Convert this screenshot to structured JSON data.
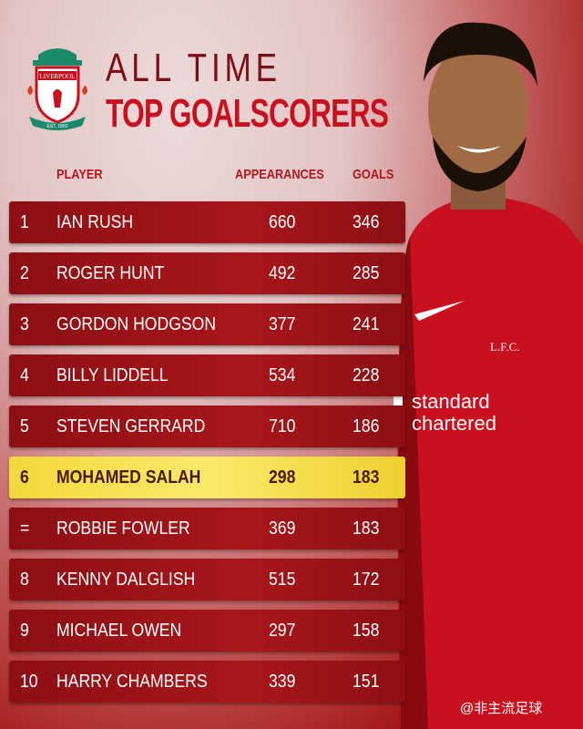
{
  "title": {
    "line1": "ALL TIME",
    "line2": "TOP GOALSCORERS"
  },
  "crest": {
    "motto": "YOU'LL NEVER WALK ALONE",
    "club": "LIVERPOOL",
    "sub": "FOOTBALL CLUB",
    "est": "EST. 1892"
  },
  "headers": {
    "player": "PLAYER",
    "appearances": "APPEARANCES",
    "goals": "GOALS"
  },
  "rows": [
    {
      "rank": "1",
      "name": "IAN RUSH",
      "apps": "660",
      "goals": "346"
    },
    {
      "rank": "2",
      "name": "ROGER HUNT",
      "apps": "492",
      "goals": "285"
    },
    {
      "rank": "3",
      "name": "GORDON HODGSON",
      "apps": "377",
      "goals": "241"
    },
    {
      "rank": "4",
      "name": "BILLY LIDDELL",
      "apps": "534",
      "goals": "228"
    },
    {
      "rank": "5",
      "name": "STEVEN GERRARD",
      "apps": "710",
      "goals": "186"
    },
    {
      "rank": "6",
      "name": "MOHAMED SALAH",
      "apps": "298",
      "goals": "183",
      "highlight": true
    },
    {
      "rank": "=",
      "name": "ROBBIE FOWLER",
      "apps": "369",
      "goals": "183"
    },
    {
      "rank": "8",
      "name": "KENNY DALGLISH",
      "apps": "515",
      "goals": "172"
    },
    {
      "rank": "9",
      "name": "MICHAEL OWEN",
      "apps": "297",
      "goals": "158"
    },
    {
      "rank": "10",
      "name": "HARRY CHAMBERS",
      "apps": "339",
      "goals": "151"
    }
  ],
  "shirt": {
    "badge": "L.F.C.",
    "sponsor1": "standard",
    "sponsor2": "chartered"
  },
  "watermark": "@非主流足球",
  "colors": {
    "red": "#c8101e",
    "highlight": "#f4d83a"
  }
}
